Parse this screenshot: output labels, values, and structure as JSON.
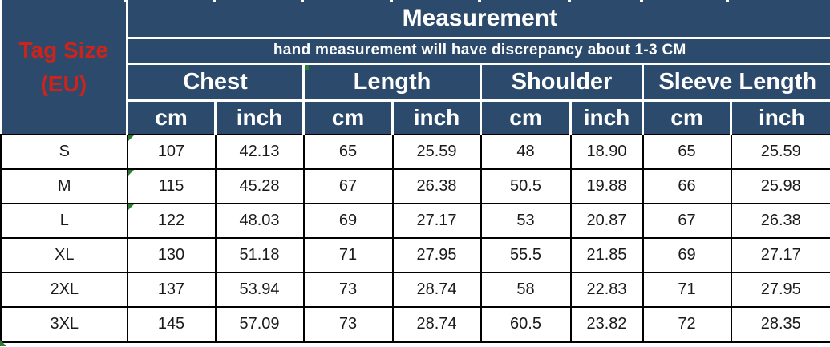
{
  "colors": {
    "header_bg": "#2c4a6b",
    "header_text": "#ffffff",
    "tag_size_text": "#cc241c",
    "data_text": "#1a1a1a",
    "grid_line": "#000000",
    "artifact_green": "#2e7d32"
  },
  "chart_data": {
    "type": "table",
    "title": "Measurement",
    "note": "hand measurement will have discrepancy about 1-3 CM",
    "row_header_line1": "Tag Size",
    "row_header_line2": "(EU)",
    "column_groups": [
      "Chest",
      "Length",
      "Shoulder",
      "Sleeve Length"
    ],
    "unit_row": [
      "cm",
      "inch",
      "cm",
      "inch",
      "cm",
      "inch",
      "cm",
      "inch"
    ],
    "columns": [
      "Chest cm",
      "Chest inch",
      "Length cm",
      "Length inch",
      "Shoulder cm",
      "Shoulder inch",
      "Sleeve Length cm",
      "Sleeve Length inch"
    ],
    "rows": [
      {
        "size": "S",
        "values": [
          "107",
          "42.13",
          "65",
          "25.59",
          "48",
          "18.90",
          "65",
          "25.59"
        ]
      },
      {
        "size": "M",
        "values": [
          "115",
          "45.28",
          "67",
          "26.38",
          "50.5",
          "19.88",
          "66",
          "25.98"
        ]
      },
      {
        "size": "L",
        "values": [
          "122",
          "48.03",
          "69",
          "27.17",
          "53",
          "20.87",
          "67",
          "26.38"
        ]
      },
      {
        "size": "XL",
        "values": [
          "130",
          "51.18",
          "71",
          "27.95",
          "55.5",
          "21.85",
          "69",
          "27.17"
        ]
      },
      {
        "size": "2XL",
        "values": [
          "137",
          "53.94",
          "73",
          "28.74",
          "58",
          "22.83",
          "71",
          "27.95"
        ]
      },
      {
        "size": "3XL",
        "values": [
          "145",
          "57.09",
          "73",
          "28.74",
          "60.5",
          "23.82",
          "72",
          "28.35"
        ]
      }
    ]
  }
}
